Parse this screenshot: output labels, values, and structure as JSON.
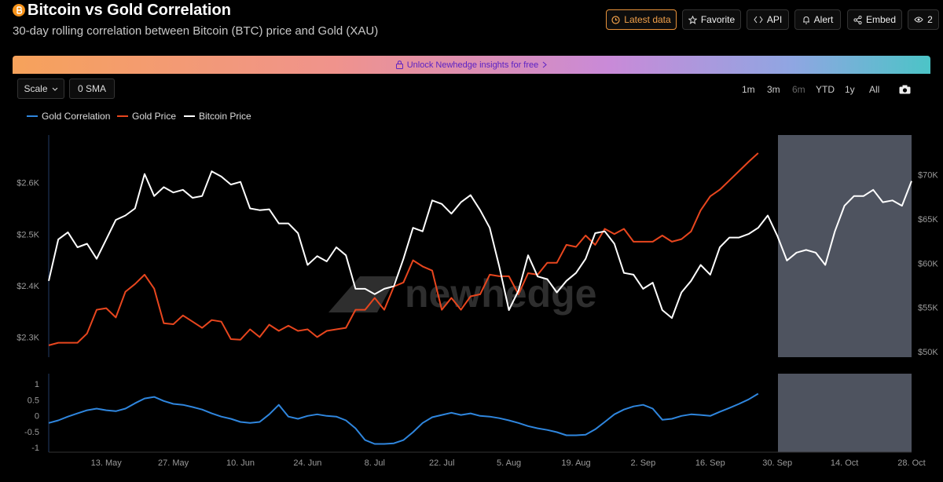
{
  "header": {
    "title": "Bitcoin vs Gold Correlation",
    "subtitle": "30-day rolling correlation between Bitcoin (BTC) price and Gold (XAU)",
    "buttons": [
      "Latest data",
      "Favorite",
      "API",
      "Alert",
      "Embed",
      "2"
    ]
  },
  "banner": "Unlock Newhedge insights for free",
  "controls": {
    "scale": "Scale",
    "sma": "0 SMA",
    "ranges": [
      "1m",
      "3m",
      "6m",
      "YTD",
      "1y",
      "All"
    ]
  },
  "watermark": "newhedge",
  "chart_data": [
    {
      "type": "line",
      "ylim": [
        2263,
        2694
      ],
      "yticks": [
        {
          "value": 2300,
          "label": "$2.3K"
        },
        {
          "value": 2400,
          "label": "$2.4K"
        },
        {
          "value": 2500,
          "label": "$2.5K"
        },
        {
          "value": 2600,
          "label": "$2.6K"
        }
      ],
      "y2lim": [
        49470,
        74600
      ],
      "y2ticks": [
        {
          "value": 50000,
          "label": "$50K"
        },
        {
          "value": 55000,
          "label": "$55K"
        },
        {
          "value": 60000,
          "label": "$60K"
        },
        {
          "value": 65000,
          "label": "$65K"
        },
        {
          "value": 70000,
          "label": "$70K"
        }
      ],
      "series": [
        {
          "name": "Gold Price",
          "color": "#e8461e",
          "axis": "y",
          "values": [
            2286,
            2291,
            2291,
            2291,
            2309,
            2355,
            2358,
            2340,
            2390,
            2405,
            2423,
            2396,
            2329,
            2327,
            2344,
            2332,
            2320,
            2335,
            2332,
            2298,
            2297,
            2317,
            2302,
            2326,
            2314,
            2324,
            2314,
            2317,
            2302,
            2314,
            2317,
            2320,
            2355,
            2355,
            2378,
            2355,
            2400,
            2408,
            2451,
            2439,
            2431,
            2355,
            2378,
            2355,
            2381,
            2385,
            2423,
            2420,
            2420,
            2385,
            2426,
            2423,
            2446,
            2446,
            2481,
            2477,
            2499,
            2481,
            2512,
            2502,
            2512,
            2487,
            2487,
            2487,
            2499,
            2487,
            2492,
            2507,
            2548,
            2575,
            2588,
            2606,
            2624,
            2642,
            2659,
            null,
            null,
            null,
            null,
            null,
            null,
            null,
            null,
            null,
            null,
            null,
            null,
            null,
            null,
            null,
            null
          ]
        },
        {
          "name": "Bitcoin Price",
          "color": "#ffffff",
          "axis": "y2",
          "values": [
            58100,
            62800,
            63600,
            61900,
            62300,
            60600,
            62800,
            65000,
            65500,
            66300,
            70200,
            67700,
            68700,
            68100,
            68400,
            67500,
            67700,
            70500,
            69900,
            69000,
            69300,
            66300,
            66100,
            66200,
            64600,
            64600,
            63500,
            59900,
            60900,
            60300,
            61900,
            61000,
            57200,
            57200,
            56600,
            57200,
            57500,
            60600,
            64100,
            63700,
            67200,
            66800,
            65700,
            67000,
            67800,
            66100,
            64100,
            59700,
            54800,
            57000,
            61000,
            58600,
            58300,
            56800,
            58100,
            59000,
            60600,
            63500,
            63700,
            62300,
            59000,
            58800,
            57200,
            57900,
            54800,
            53900,
            56800,
            58100,
            59900,
            58800,
            61900,
            63000,
            63000,
            63400,
            64100,
            65500,
            63200,
            60400,
            61300,
            61600,
            61300,
            59900,
            63700,
            66600,
            67700,
            67700,
            68400,
            67000,
            67200,
            66600,
            69400
          ]
        }
      ]
    },
    {
      "type": "line",
      "categories": [
        null,
        null,
        null,
        null,
        null,
        null,
        "13. May",
        null,
        null,
        null,
        null,
        null,
        null,
        "27. May",
        null,
        null,
        null,
        null,
        null,
        null,
        "10. Jun",
        null,
        null,
        null,
        null,
        null,
        null,
        "24. Jun",
        null,
        null,
        null,
        null,
        null,
        null,
        "8. Jul",
        null,
        null,
        null,
        null,
        null,
        null,
        "22. Jul",
        null,
        null,
        null,
        null,
        null,
        null,
        "5. Aug",
        null,
        null,
        null,
        null,
        null,
        null,
        "19. Aug",
        null,
        null,
        null,
        null,
        null,
        null,
        "2. Sep",
        null,
        null,
        null,
        null,
        null,
        null,
        "16. Sep",
        null,
        null,
        null,
        null,
        null,
        null,
        "30. Sep",
        null,
        null,
        null,
        null,
        null,
        null,
        "14. Oct",
        null,
        null,
        null,
        null,
        null,
        null,
        "28. Oct"
      ],
      "ylim": [
        -1.12,
        1.35
      ],
      "yticks": [
        -1,
        -0.5,
        0,
        0.5,
        1
      ],
      "series": [
        {
          "name": "Gold Correlation",
          "color": "#2f86de",
          "values": [
            -0.2,
            -0.12,
            0,
            0.1,
            0.2,
            0.25,
            0.2,
            0.17,
            0.25,
            0.42,
            0.57,
            0.62,
            0.49,
            0.4,
            0.37,
            0.3,
            0.22,
            0.1,
            0,
            -0.07,
            -0.17,
            -0.2,
            -0.17,
            0.07,
            0.37,
            0,
            -0.07,
            0.02,
            0.07,
            0.02,
            0,
            -0.12,
            -0.37,
            -0.74,
            -0.86,
            -0.86,
            -0.84,
            -0.74,
            -0.49,
            -0.2,
            -0.02,
            0.05,
            0.12,
            0.05,
            0.1,
            0.02,
            0,
            -0.05,
            -0.12,
            -0.2,
            -0.3,
            -0.37,
            -0.42,
            -0.49,
            -0.59,
            -0.59,
            -0.57,
            -0.4,
            -0.17,
            0.07,
            0.22,
            0.32,
            0.37,
            0.25,
            -0.1,
            -0.07,
            0.02,
            0.07,
            0.05,
            0.02,
            0.15,
            0.27,
            0.4,
            0.54,
            0.72,
            null,
            null,
            null,
            null,
            null,
            null,
            null,
            null,
            null,
            null,
            null,
            null,
            null,
            null,
            null,
            null
          ]
        }
      ]
    }
  ]
}
